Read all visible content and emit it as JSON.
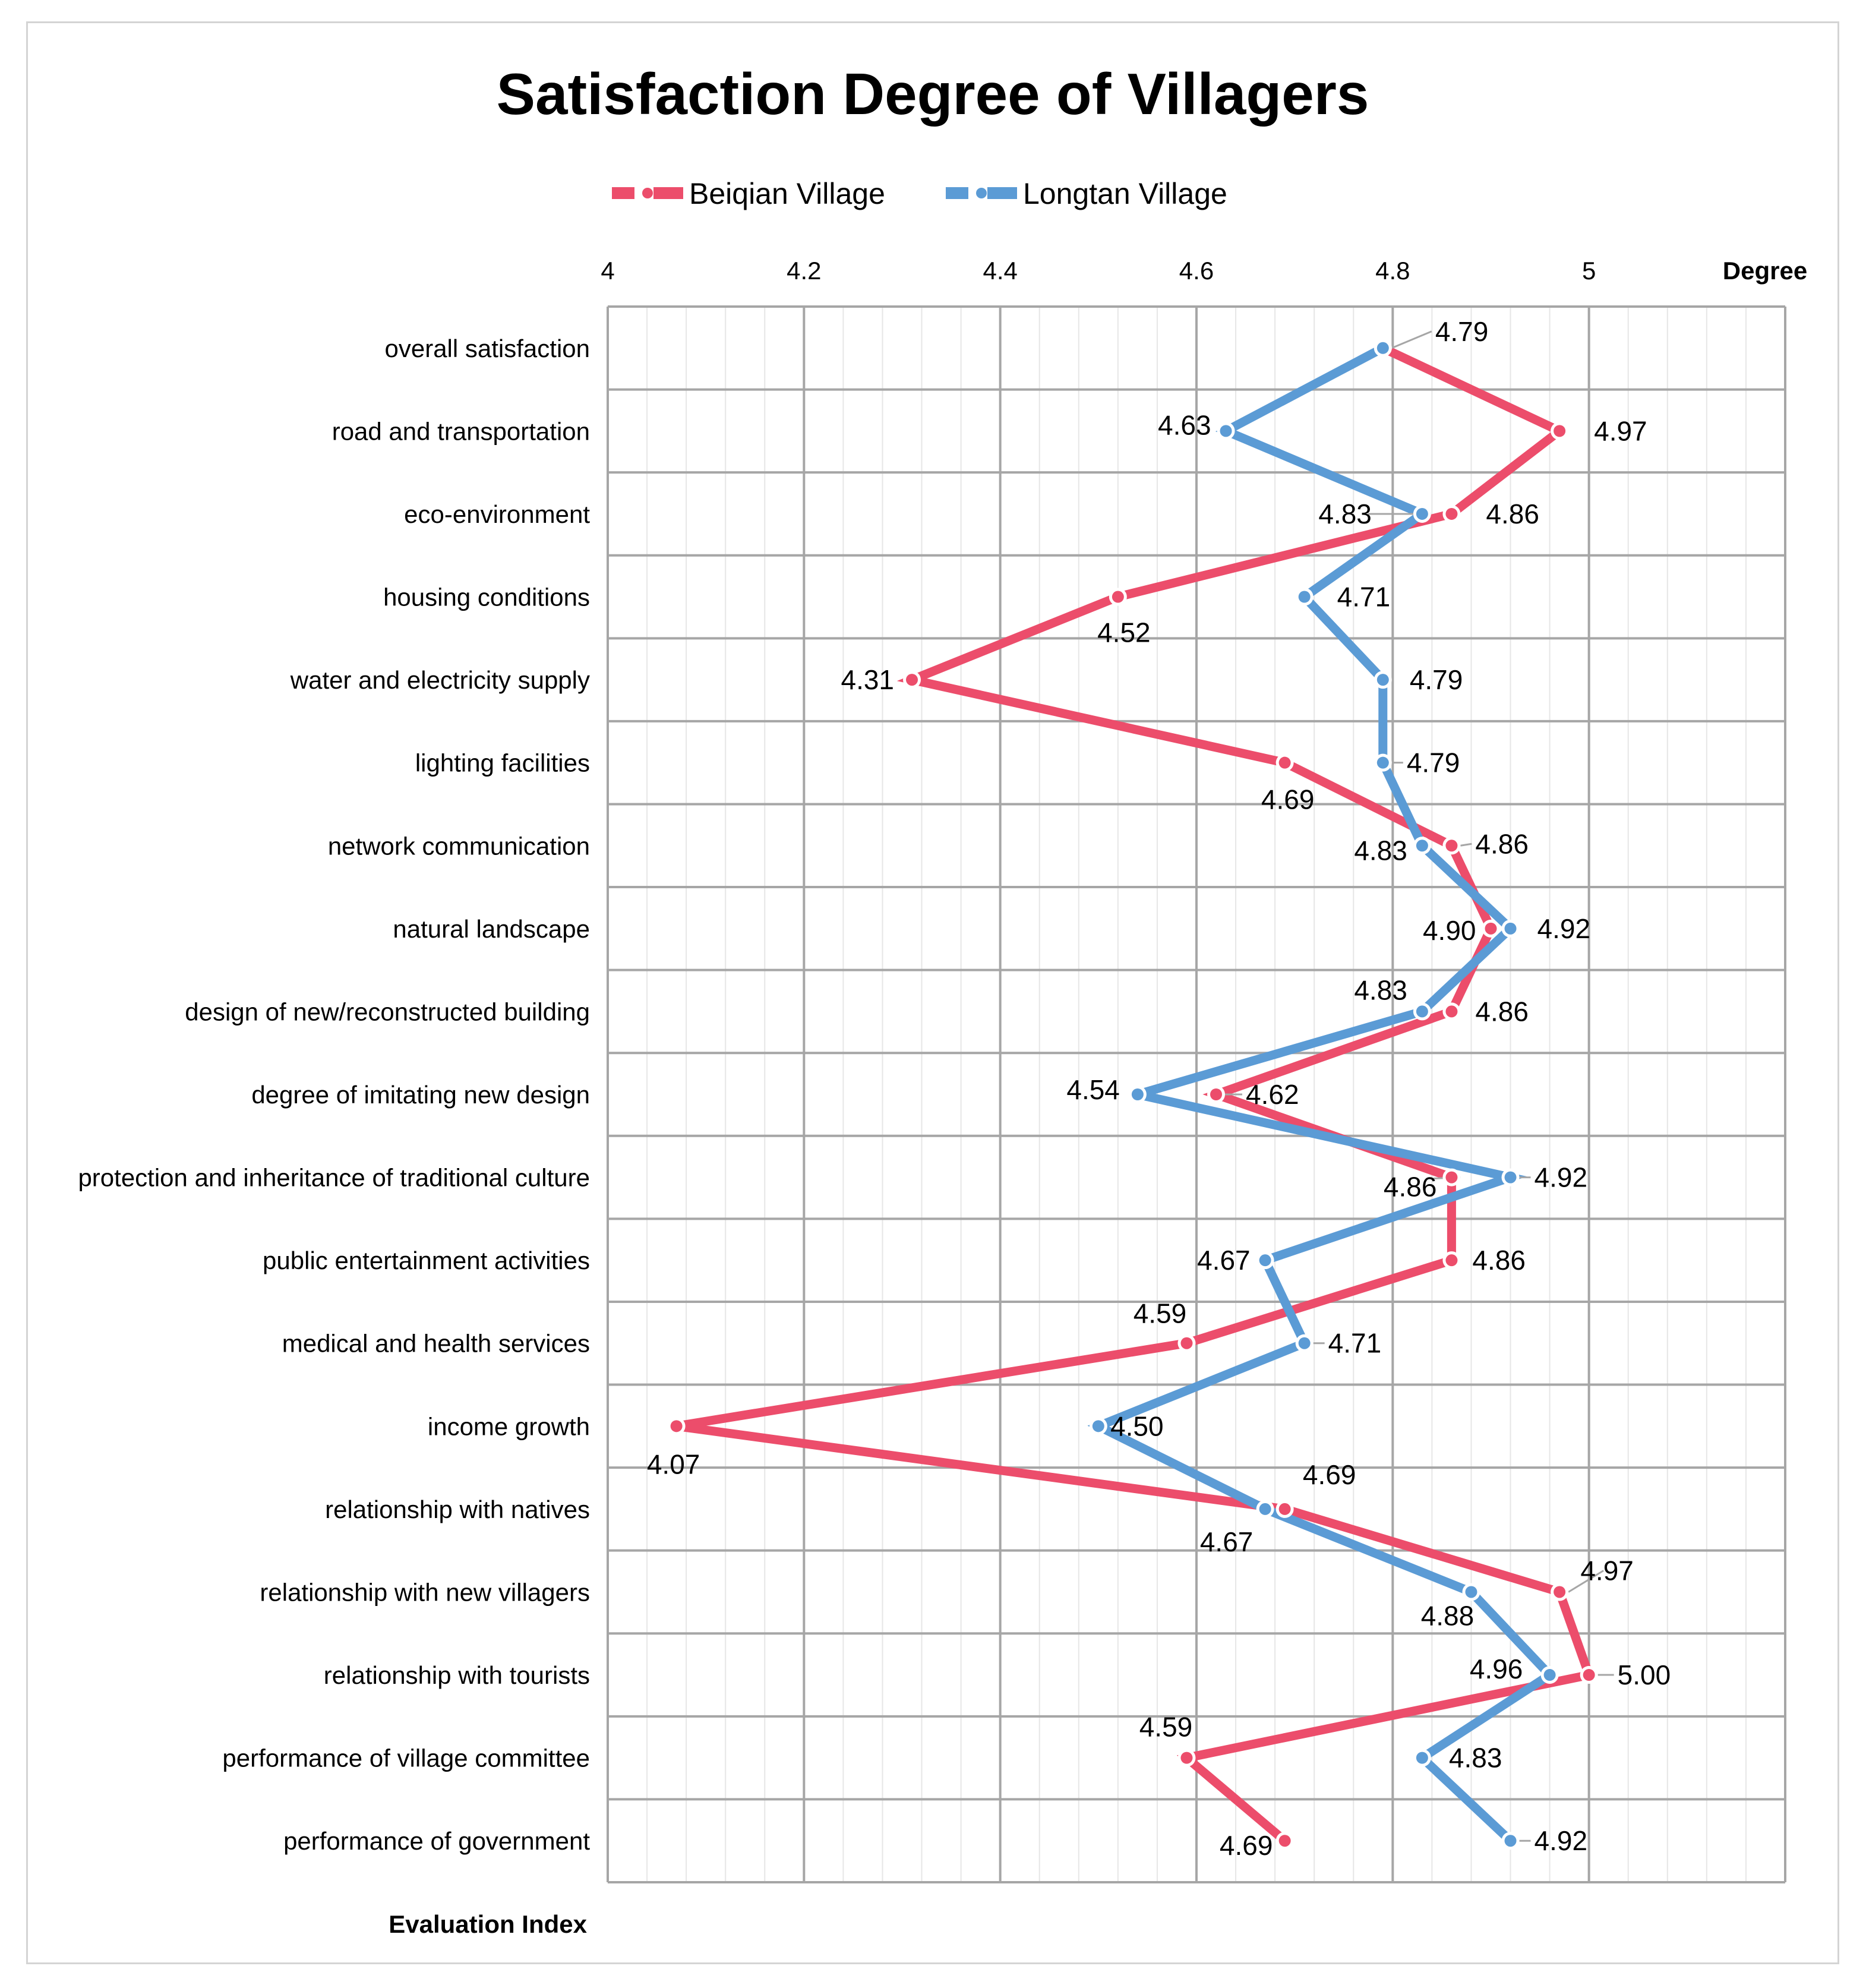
{
  "chart_data": {
    "type": "line",
    "orientation": "horizontal",
    "title": "Satisfaction Degree of Villagers",
    "xlabel": "Degree",
    "ylabel": "Evaluation Index",
    "xlim": [
      4,
      5.2
    ],
    "x_ticks": [
      "4",
      "4.2",
      "4.4",
      "4.6",
      "4.8",
      "5"
    ],
    "grid": true,
    "legend_position": "top",
    "categories": [
      "overall satisfaction",
      "road and transportation",
      "eco-environment",
      "housing conditions",
      "water and electricity supply",
      "lighting facilities",
      "network communication",
      "natural landscape",
      "design of new/reconstructed building",
      "degree of imitating new design",
      "protection and inheritance of traditional culture",
      "public entertainment activities",
      "medical and health services",
      "income growth",
      "relationship with natives",
      "relationship with new villagers",
      "relationship with tourists",
      "performance of village committee",
      "performance of government"
    ],
    "series": [
      {
        "name": "Beiqian Village",
        "color": "#ec4d6b",
        "values": [
          4.79,
          4.97,
          4.86,
          4.52,
          4.31,
          4.69,
          4.86,
          4.9,
          4.86,
          4.62,
          4.86,
          4.86,
          4.59,
          4.07,
          4.69,
          4.97,
          5.0,
          4.59,
          4.69
        ],
        "labels": [
          null,
          "4.97",
          "4.86",
          "4.52",
          "4.31",
          "4.69",
          "4.86",
          "4.90",
          "4.86",
          "4.62",
          "4.86",
          "4.86",
          "4.59",
          "4.07",
          "4.69",
          "4.97",
          "5.00",
          "4.59",
          "4.69"
        ]
      },
      {
        "name": "Longtan Village",
        "color": "#5b9bd5",
        "values": [
          4.79,
          4.63,
          4.83,
          4.71,
          4.79,
          4.79,
          4.83,
          4.92,
          4.83,
          4.54,
          4.92,
          4.67,
          4.71,
          4.5,
          4.67,
          4.88,
          4.96,
          4.83,
          4.92
        ],
        "labels": [
          "4.79",
          "4.63",
          "4.83",
          "4.71",
          "4.79",
          "4.79",
          "4.83",
          "4.92",
          "4.83",
          "4.54",
          "4.92",
          "4.67",
          "4.71",
          "4.50",
          "4.67",
          "4.88",
          "4.96",
          "4.83",
          "4.92"
        ]
      }
    ]
  }
}
